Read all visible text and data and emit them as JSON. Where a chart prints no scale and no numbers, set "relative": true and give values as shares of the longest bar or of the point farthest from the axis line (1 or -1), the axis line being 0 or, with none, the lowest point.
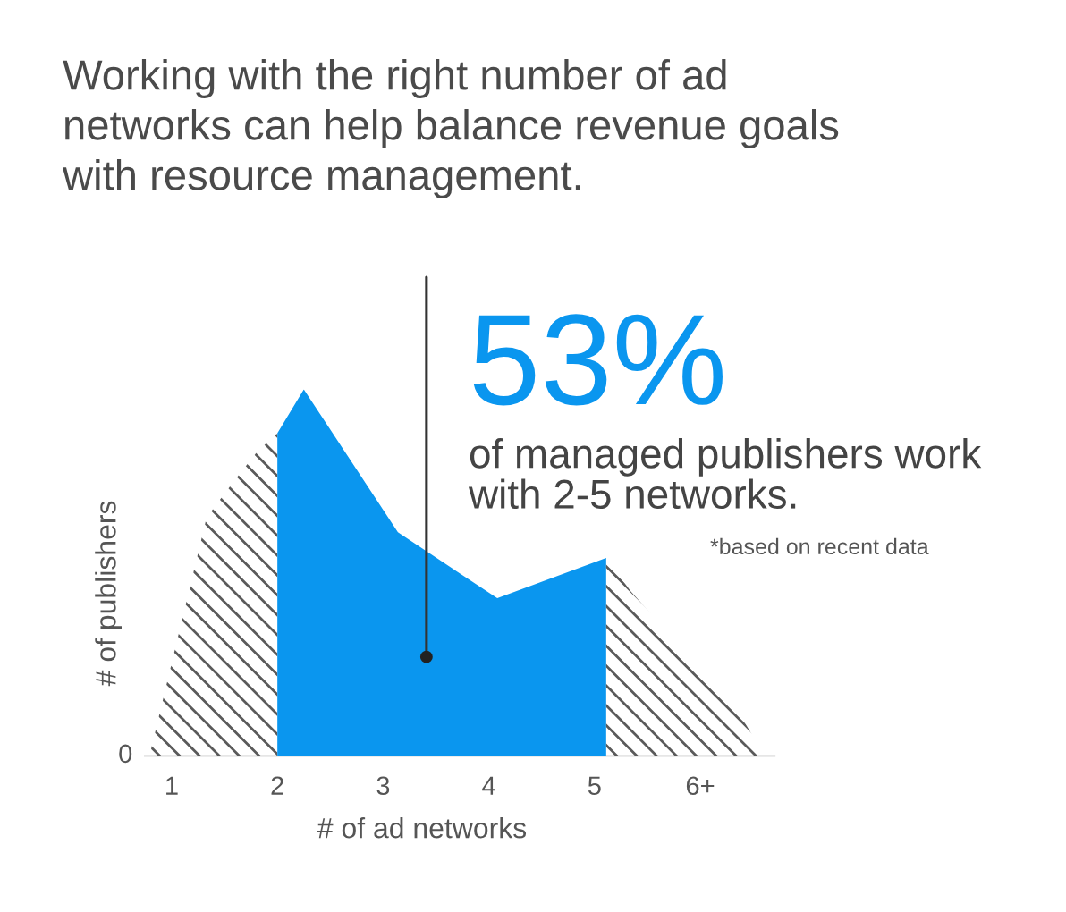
{
  "chart_data": {
    "type": "area",
    "title": "Working with the right number of ad\nnetworks can help balance revenue goals\nwith resource management.",
    "xlabel": "# of ad networks",
    "ylabel": "# of publishers",
    "relative": true,
    "xlim": [
      0.75,
      6.7
    ],
    "xticks": [
      1,
      2,
      3,
      4,
      5,
      {
        "value": 6,
        "label": "6+"
      }
    ],
    "series": [
      {
        "color": "#5a5a5a",
        "x": [
          0.79,
          1.33,
          1.59,
          1.81,
          2.0
        ],
        "values": [
          0,
          0.65,
          0.75,
          0.83,
          0.88
        ]
      },
      {
        "color": "#0a96ef",
        "x": [
          2.0,
          2.25,
          3.14,
          4.08,
          5.11
        ],
        "values": [
          0.88,
          1,
          0.61,
          0.43,
          0.54
        ]
      },
      {
        "color": "#5a5a5a",
        "x": [
          5.11,
          5.34,
          5.68,
          6.07,
          6.38,
          6.61
        ],
        "values": [
          0.54,
          0.45,
          0.34,
          0.22,
          0.11,
          0
        ]
      }
    ],
    "annotations": [
      {
        "text": "53%",
        "x": 3.41,
        "y": 0.27
      },
      "of managed publishers work\nwith 2-5 networks.",
      "*based on recent data",
      "0"
    ]
  }
}
